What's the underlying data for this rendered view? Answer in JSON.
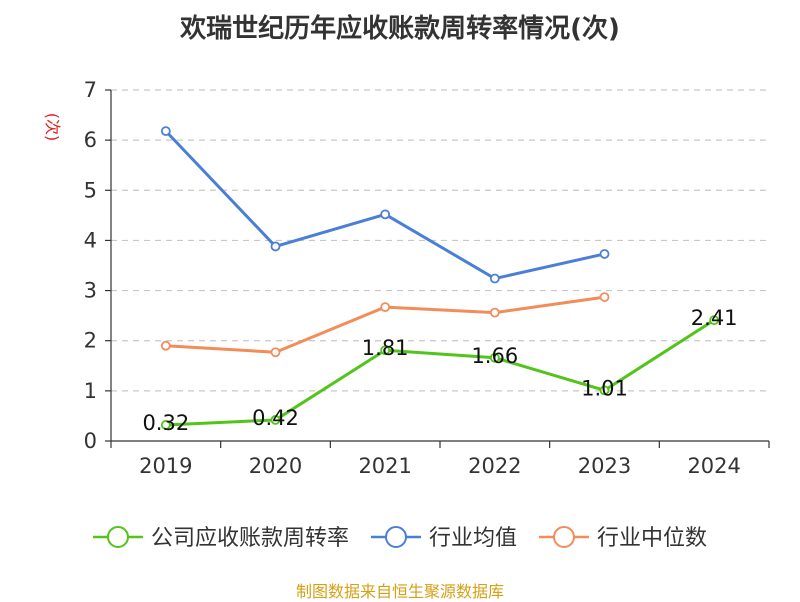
{
  "chart_data": {
    "type": "line",
    "title": "欢瑞世纪历年应收账款周转率情况(次)",
    "ylabel": "(次)",
    "xlabel": "",
    "categories": [
      "2019",
      "2020",
      "2021",
      "2022",
      "2023",
      "2024"
    ],
    "ylim": [
      0,
      7
    ],
    "yticks": [
      0,
      1,
      2,
      3,
      4,
      5,
      6,
      7
    ],
    "grid": true,
    "legend_position": "bottom",
    "series": [
      {
        "name": "公司应收账款周转率",
        "color": "#52c41a",
        "values": [
          0.32,
          0.42,
          1.81,
          1.66,
          1.01,
          2.41
        ],
        "value_labels": [
          "0.32",
          "0.42",
          "1.81",
          "1.66",
          "1.01",
          "2.41"
        ]
      },
      {
        "name": "行业均值",
        "color": "#4a7fd8",
        "values": [
          6.18,
          3.88,
          4.52,
          3.24,
          3.73,
          null
        ]
      },
      {
        "name": "行业中位数",
        "color": "#f28c5a",
        "values": [
          1.9,
          1.77,
          2.67,
          2.56,
          2.87,
          null
        ]
      }
    ]
  },
  "source": {
    "text": "制图数据来自恒生聚源数据库",
    "color": "#d4a017"
  },
  "unit_color": "#e02020"
}
